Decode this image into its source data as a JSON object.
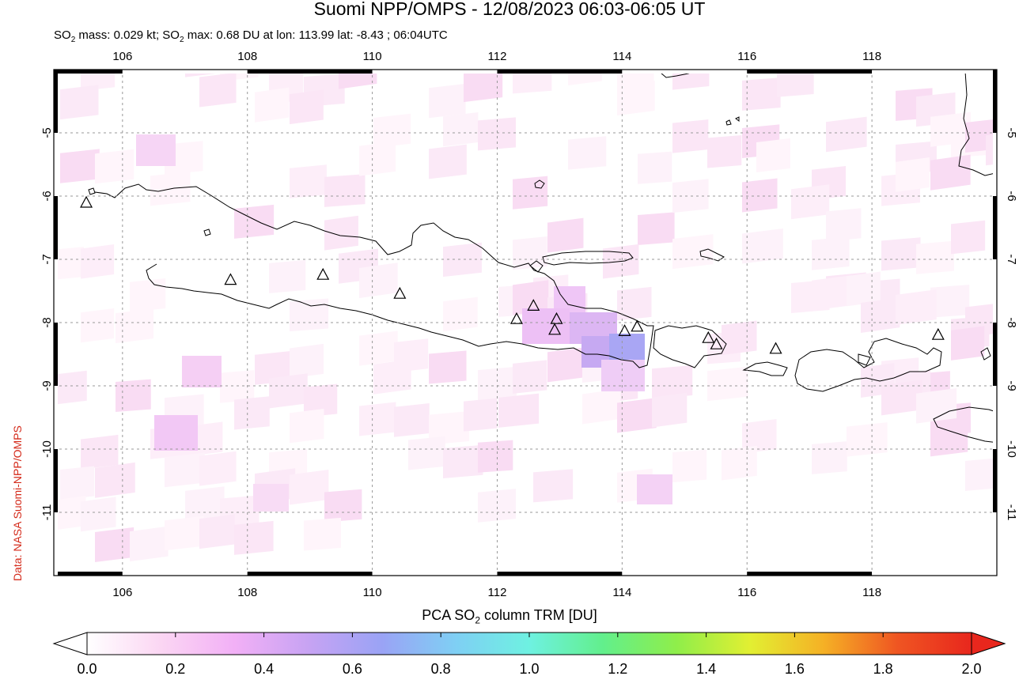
{
  "title": "Suomi NPP/OMPS - 12/08/2023 06:03-06:05 UT",
  "subtitle": {
    "prefix": "SO",
    "sub": "2",
    "mid1": " mass: 0.029 kt; SO",
    "sub2": "2",
    "mid2": " max: 0.68 DU at lon: 113.99 lat: -8.43 ; 06:04UTC"
  },
  "credit": "Data: NASA Suomi-NPP/OMPS",
  "map": {
    "lon_range": [
      104.9,
      120.0
    ],
    "lat_range": [
      -12.0,
      -4.0
    ],
    "lon_ticks": [
      "106",
      "108",
      "110",
      "112",
      "114",
      "116",
      "118"
    ],
    "lat_ticks": [
      "-5",
      "-6",
      "-7",
      "-8",
      "-9",
      "-10",
      "-11"
    ],
    "grid": true,
    "volcanoes": [
      {
        "lon": 105.42,
        "lat": -6.1
      },
      {
        "lon": 107.73,
        "lat": -7.32
      },
      {
        "lon": 109.21,
        "lat": -7.24
      },
      {
        "lon": 110.44,
        "lat": -7.54
      },
      {
        "lon": 112.31,
        "lat": -7.94
      },
      {
        "lon": 112.58,
        "lat": -7.73
      },
      {
        "lon": 112.95,
        "lat": -7.94
      },
      {
        "lon": 112.92,
        "lat": -8.11
      },
      {
        "lon": 114.04,
        "lat": -8.13
      },
      {
        "lon": 114.24,
        "lat": -8.06
      },
      {
        "lon": 115.38,
        "lat": -8.24
      },
      {
        "lon": 115.51,
        "lat": -8.34
      },
      {
        "lon": 116.46,
        "lat": -8.41
      },
      {
        "lon": 119.06,
        "lat": -8.19
      }
    ]
  },
  "colorbar": {
    "label_prefix": "PCA SO",
    "label_sub": "2",
    "label_suffix": " column TRM [DU]",
    "ticks": [
      "0.0",
      "0.2",
      "0.4",
      "0.6",
      "0.8",
      "1.0",
      "1.2",
      "1.4",
      "1.6",
      "1.8",
      "2.0"
    ],
    "colors": [
      "#ffffff",
      "#fbd6f3",
      "#f2b0f6",
      "#c7a3f3",
      "#9aa3f5",
      "#7fcff4",
      "#6ef1e1",
      "#62ef8c",
      "#8fee4a",
      "#e2ef32",
      "#f5b025",
      "#ef5522",
      "#e8271d"
    ]
  }
}
